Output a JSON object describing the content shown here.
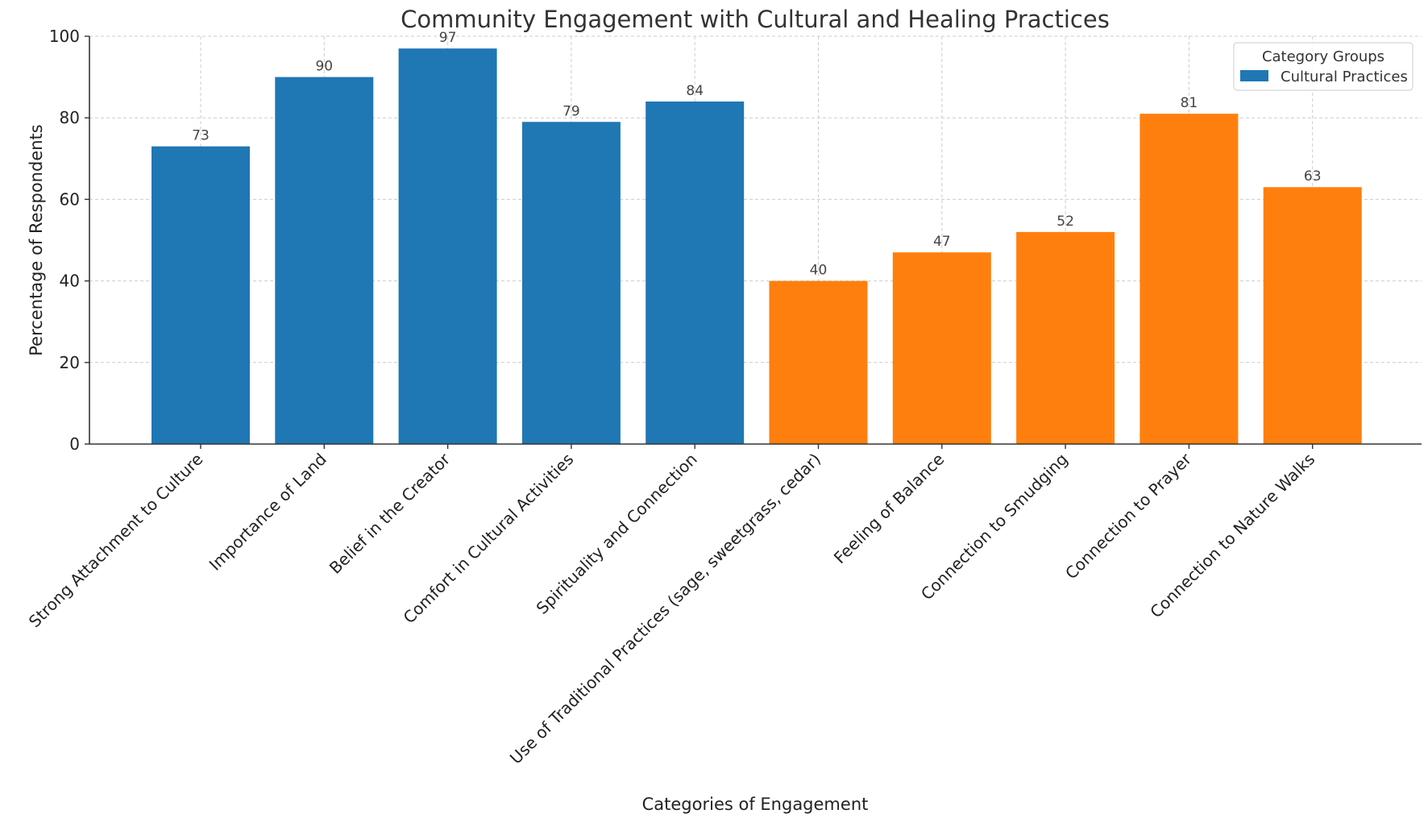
{
  "chart_data": {
    "type": "bar",
    "title": "Community Engagement with Cultural and Healing Practices",
    "xlabel": "Categories of Engagement",
    "ylabel": "Percentage of Respondents",
    "ylim": [
      0,
      100
    ],
    "yticks": [
      0,
      20,
      40,
      60,
      80,
      100
    ],
    "grid": true,
    "legend": {
      "title": "Category Groups",
      "placement": "top-right",
      "entries": [
        {
          "label": "Cultural Practices",
          "color": "#1f77b4"
        }
      ]
    },
    "colors": {
      "cultural": "#1f77b4",
      "healing": "#ff7f0e"
    },
    "categories": [
      "Strong Attachment to Culture",
      "Importance of Land",
      "Belief in the Creator",
      "Comfort in Cultural Activities",
      "Spirituality and Connection",
      "Use of Traditional Practices (sage, sweetgrass, cedar)",
      "Feeling of Balance",
      "Connection to Smudging",
      "Connection to Prayer",
      "Connection to Nature Walks"
    ],
    "values": [
      73,
      90,
      97,
      79,
      84,
      40,
      47,
      52,
      81,
      63
    ],
    "groups": [
      "cultural",
      "cultural",
      "cultural",
      "cultural",
      "cultural",
      "healing",
      "healing",
      "healing",
      "healing",
      "healing"
    ],
    "data_labels": [
      "73",
      "90",
      "97",
      "79",
      "84",
      "40",
      "47",
      "52",
      "81",
      "63"
    ]
  }
}
